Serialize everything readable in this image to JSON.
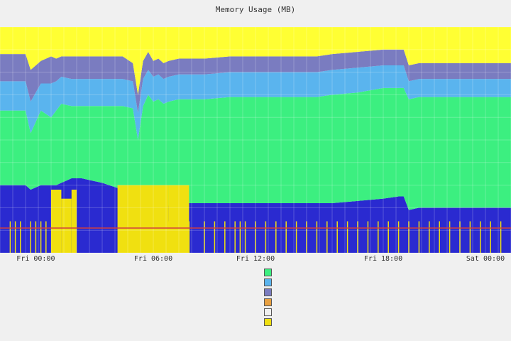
{
  "title": "Memory Usage (MB)",
  "chart_data": {
    "type": "area",
    "stacked": true,
    "ylim": [
      0,
      100
    ],
    "grid": true,
    "x_ticks": [
      "Fri 00:00",
      "Fri 06:00",
      "Fri 12:00",
      "Fri 18:00",
      "Sat 00:00"
    ],
    "x": [
      0,
      3,
      5,
      6,
      8,
      10,
      11,
      12,
      14,
      16,
      20,
      24,
      26,
      27,
      28,
      29,
      30,
      31,
      32,
      33,
      35,
      40,
      45,
      50,
      55,
      60,
      62,
      65,
      70,
      75,
      78,
      79,
      80,
      82,
      85,
      90,
      95,
      100
    ],
    "series": [
      {
        "key": "dark_blue",
        "color": "#2a2ad0",
        "values": [
          30,
          30,
          30,
          28,
          30,
          30,
          30,
          31,
          33,
          33,
          31,
          28,
          22,
          20,
          25,
          30,
          22,
          22,
          20,
          21,
          22,
          22,
          22,
          22,
          22,
          22,
          22,
          22,
          23,
          24,
          25,
          25,
          19,
          20,
          20,
          20,
          20,
          20
        ]
      },
      {
        "key": "green",
        "color": "#3cef80",
        "values": [
          33,
          33,
          33,
          25,
          33,
          30,
          33,
          35,
          32,
          32,
          34,
          37,
          42,
          30,
          40,
          40,
          45,
          46,
          46,
          46,
          46,
          46,
          47,
          47,
          47,
          47,
          47,
          48,
          48,
          49,
          48,
          48,
          49,
          49,
          49,
          49,
          49,
          49
        ]
      },
      {
        "key": "light_blue",
        "color": "#5ab4ee",
        "values": [
          13,
          13,
          13,
          14,
          12,
          15,
          13,
          12,
          12,
          12,
          12,
          12,
          12,
          12,
          12,
          11,
          11,
          11,
          11,
          11,
          11,
          11,
          11,
          11,
          11,
          11,
          11,
          11,
          11,
          10,
          10,
          10,
          8,
          8,
          8,
          8,
          8,
          8
        ]
      },
      {
        "key": "purple",
        "color": "#7a7cc0",
        "values": [
          12,
          12,
          12,
          14,
          10,
          12,
          10,
          9,
          10,
          10,
          10,
          10,
          8,
          8,
          8,
          8,
          7,
          7,
          7,
          7,
          7,
          7,
          7,
          7,
          7,
          7,
          7,
          7,
          7,
          7,
          7,
          7,
          7,
          7,
          7,
          7,
          7,
          7
        ]
      },
      {
        "key": "yellow",
        "color": "#ffff33",
        "values": [
          12,
          12,
          12,
          19,
          15,
          13,
          14,
          13,
          13,
          13,
          13,
          13,
          16,
          30,
          15,
          11,
          15,
          14,
          16,
          15,
          14,
          14,
          13,
          13,
          13,
          13,
          13,
          12,
          11,
          10,
          10,
          10,
          17,
          16,
          16,
          16,
          16,
          16
        ]
      }
    ],
    "overlay_bars": {
      "color": "#f0e010",
      "bars": [
        [
          10,
          12,
          28
        ],
        [
          12,
          14,
          24
        ],
        [
          14,
          15,
          28
        ],
        [
          23,
          33,
          30
        ],
        [
          33,
          37,
          30
        ]
      ]
    },
    "thin_spikes": [
      2,
      3,
      4,
      6,
      7,
      8,
      9,
      33,
      35,
      37,
      40,
      42,
      44,
      46,
      47,
      48,
      50,
      52,
      54,
      56,
      58,
      60,
      62,
      64,
      66,
      68,
      70,
      72,
      74,
      76,
      78,
      80,
      82,
      84,
      86,
      88,
      90,
      92,
      94,
      96,
      98
    ],
    "red_line": {
      "value": 11,
      "color": "#d04040"
    }
  },
  "legend": {
    "col1": [
      {
        "label": "",
        "value": ""
      },
      {
        "label": "",
        "value": ""
      },
      {
        "label": "",
        "value": ""
      },
      {
        "label": "",
        "value": ""
      },
      {
        "label": "",
        "value": ""
      },
      {
        "label": "",
        "value": ""
      }
    ],
    "col2": [
      {
        "label": "",
        "value": ""
      },
      {
        "label": "",
        "value": ""
      },
      {
        "label": "",
        "value": ""
      },
      {
        "label": "",
        "value": ""
      },
      {
        "label": "",
        "value": ""
      }
    ],
    "col3": [
      {
        "label": "",
        "color": "#3cef80"
      },
      {
        "label": "",
        "color": "#5ab4ee"
      },
      {
        "label": "",
        "color": "#7a7cc0"
      },
      {
        "label": "",
        "color": "#e8a040"
      },
      {
        "label": "",
        "color": "#f0f0f0"
      },
      {
        "label": "",
        "color": "#f0e010"
      }
    ],
    "col4": [
      {
        "label": "",
        "value": ""
      },
      {
        "label": "",
        "value": ""
      },
      {
        "label": "",
        "value": ""
      },
      {
        "label": "",
        "value": ""
      },
      {
        "label": "",
        "value": ""
      },
      {
        "label": "",
        "value": ""
      }
    ]
  }
}
